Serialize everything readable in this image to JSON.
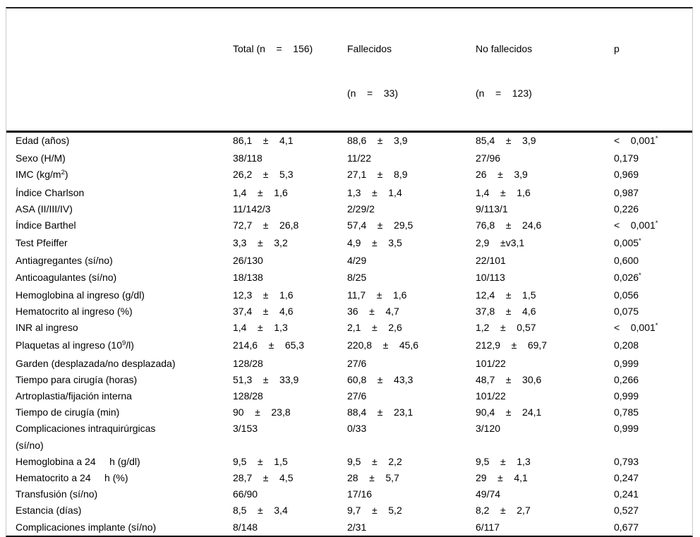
{
  "table": {
    "header": [
      {
        "line1": "",
        "line2": ""
      },
      {
        "line1": "Total (n    =    156)",
        "line2": ""
      },
      {
        "line1": "Fallecidos",
        "line2": "(n    =    33)"
      },
      {
        "line1": "No fallecidos",
        "line2": "(n    =    123)"
      },
      {
        "line1": "p",
        "line2": ""
      }
    ],
    "rows": [
      {
        "label": "Edad (años)",
        "label_sup": "",
        "label_end": "",
        "label_line2": "",
        "cells": [
          "86,1    ±    4,1",
          "88,6    ±    3,9",
          "85,4    ±    3,9"
        ],
        "p": "<    0,001",
        "p_sup": "*"
      },
      {
        "label": "Sexo (H/M)",
        "label_sup": "",
        "label_end": "",
        "label_line2": "",
        "cells": [
          "38/118",
          "11/22",
          "27/96"
        ],
        "p": "0,179",
        "p_sup": ""
      },
      {
        "label": "IMC (kg/m",
        "label_sup": "2",
        "label_end": ")",
        "label_line2": "",
        "cells": [
          "26,2    ±    5,3",
          "27,1    ±    8,9",
          "26    ±    3,9"
        ],
        "p": "0,969",
        "p_sup": ""
      },
      {
        "label": "Índice Charlson",
        "label_sup": "",
        "label_end": "",
        "label_line2": "",
        "cells": [
          "1,4    ±    1,6",
          "1,3    ±    1,4",
          "1,4    ±    1,6"
        ],
        "p": "0,987",
        "p_sup": ""
      },
      {
        "label": "ASA (II/III/IV)",
        "label_sup": "",
        "label_end": "",
        "label_line2": "",
        "cells": [
          "11/142/3",
          "2/29/2",
          "9/113/1"
        ],
        "p": "0,226",
        "p_sup": ""
      },
      {
        "label": "Índice Barthel",
        "label_sup": "",
        "label_end": "",
        "label_line2": "",
        "cells": [
          "72,7    ±    26,8",
          "57,4    ±    29,5",
          "76,8    ±    24,6"
        ],
        "p": "<    0,001",
        "p_sup": "*"
      },
      {
        "label": "Test Pfeiffer",
        "label_sup": "",
        "label_end": "",
        "label_line2": "",
        "cells": [
          "3,3    ±    3,2",
          "4,9    ±    3,5",
          "2,9    ±v3,1"
        ],
        "p": "0,005",
        "p_sup": "*"
      },
      {
        "label": "Antiagregantes (sí/no)",
        "label_sup": "",
        "label_end": "",
        "label_line2": "",
        "cells": [
          "26/130",
          "4/29",
          "22/101"
        ],
        "p": "0,600",
        "p_sup": ""
      },
      {
        "label": "Anticoagulantes (sí/no)",
        "label_sup": "",
        "label_end": "",
        "label_line2": "",
        "cells": [
          "18/138",
          "8/25",
          "10/113"
        ],
        "p": "0,026",
        "p_sup": "*"
      },
      {
        "label": "Hemoglobina al ingreso (g/dl)",
        "label_sup": "",
        "label_end": "",
        "label_line2": "",
        "cells": [
          "12,3    ±    1,6",
          "11,7    ±    1,6",
          "12,4    ±    1,5"
        ],
        "p": "0,056",
        "p_sup": ""
      },
      {
        "label": "Hematocrito al ingreso (%)",
        "label_sup": "",
        "label_end": "",
        "label_line2": "",
        "cells": [
          "37,4    ±    4,6",
          "36    ±    4,7",
          "37,8    ±    4,6"
        ],
        "p": "0,075",
        "p_sup": ""
      },
      {
        "label": "INR al ingreso",
        "label_sup": "",
        "label_end": "",
        "label_line2": "",
        "cells": [
          "1,4    ±    1,3",
          "2,1    ±    2,6",
          "1,2    ±    0,57"
        ],
        "p": "<    0,001",
        "p_sup": "*"
      },
      {
        "label": "Plaquetas al ingreso (10",
        "label_sup": "9",
        "label_end": "/l)",
        "label_line2": "",
        "cells": [
          "214,6    ±    65,3",
          "220,8    ±    45,6",
          "212,9    ±    69,7"
        ],
        "p": "0,208",
        "p_sup": ""
      },
      {
        "label": "Garden (desplazada/no desplazada)",
        "label_sup": "",
        "label_end": "",
        "label_line2": "",
        "cells": [
          "128/28",
          "27/6",
          "101/22"
        ],
        "p": "0,999",
        "p_sup": ""
      },
      {
        "label": "Tiempo para cirugía (horas)",
        "label_sup": "",
        "label_end": "",
        "label_line2": "",
        "cells": [
          "51,3    ±    33,9",
          "60,8    ±    43,3",
          "48,7    ±    30,6"
        ],
        "p": "0,266",
        "p_sup": ""
      },
      {
        "label": "Artroplastia/fijación interna",
        "label_sup": "",
        "label_end": "",
        "label_line2": "",
        "cells": [
          "128/28",
          "27/6",
          "101/22"
        ],
        "p": "0,999",
        "p_sup": ""
      },
      {
        "label": "Tiempo de cirugía (min)",
        "label_sup": "",
        "label_end": "",
        "label_line2": "",
        "cells": [
          "90    ±    23,8",
          "88,4    ±    23,1",
          "90,4    ±    24,1"
        ],
        "p": "0,785",
        "p_sup": ""
      },
      {
        "label": "Complicaciones intraquirúrgicas",
        "label_sup": "",
        "label_end": "",
        "label_line2": "(sí/no)",
        "cells": [
          "3/153",
          "0/33",
          "3/120"
        ],
        "p": "0,999",
        "p_sup": ""
      },
      {
        "label": "Hemoglobina a 24     h (g/dl)",
        "label_sup": "",
        "label_end": "",
        "label_line2": "",
        "cells": [
          "9,5    ±    1,5",
          "9,5    ±    2,2",
          "9,5    ±    1,3"
        ],
        "p": "0,793",
        "p_sup": ""
      },
      {
        "label": "Hematocrito a 24     h (%)",
        "label_sup": "",
        "label_end": "",
        "label_line2": "",
        "cells": [
          "28,7    ±    4,5",
          "28    ±    5,7",
          "29    ±    4,1"
        ],
        "p": "0,247",
        "p_sup": ""
      },
      {
        "label": "Transfusión (sí/no)",
        "label_sup": "",
        "label_end": "",
        "label_line2": "",
        "cells": [
          "66/90",
          "17/16",
          "49/74"
        ],
        "p": "0,241",
        "p_sup": ""
      },
      {
        "label": "Estancia (días)",
        "label_sup": "",
        "label_end": "",
        "label_line2": "",
        "cells": [
          "8,5    ±    3,4",
          "9,7    ±    5,2",
          "8,2    ±    2,7"
        ],
        "p": "0,527",
        "p_sup": ""
      },
      {
        "label": "Complicaciones implante (sí/no)",
        "label_sup": "",
        "label_end": "",
        "label_line2": "",
        "cells": [
          "8/148",
          "2/31",
          "6/117"
        ],
        "p": "0,677",
        "p_sup": ""
      }
    ]
  }
}
